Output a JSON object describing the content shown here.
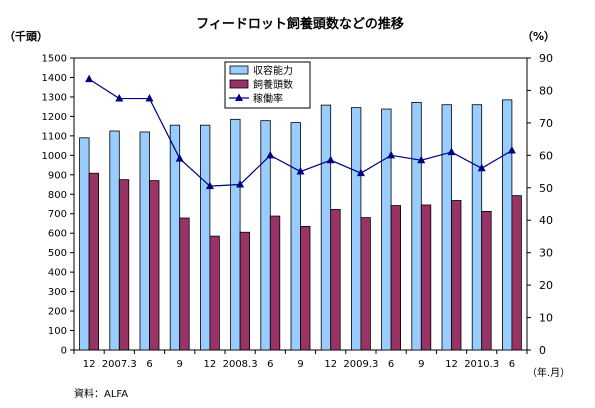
{
  "chart_data": {
    "type": "bar",
    "title": "フィードロット飼養頭数などの推移",
    "ylabel_left": "（千頭）",
    "ylabel_right": "（%）",
    "xlabel": "（年.月）",
    "source": "資料：ALFA",
    "categories": [
      "12",
      "2007.3",
      "6",
      "9",
      "12",
      "2008.3",
      "6",
      "9",
      "12",
      "2009.3",
      "6",
      "9",
      "12",
      "2010.3",
      "6"
    ],
    "ylim_left": [
      0,
      1500
    ],
    "yticks_left": [
      "0",
      "100",
      "200",
      "300",
      "400",
      "500",
      "600",
      "700",
      "800",
      "900",
      "1000",
      "1100",
      "1200",
      "1300",
      "1400",
      "1500"
    ],
    "ylim_right": [
      0,
      90
    ],
    "yticks_right": [
      "0",
      "10",
      "20",
      "30",
      "40",
      "50",
      "60",
      "70",
      "80",
      "90"
    ],
    "legend_position": "top-center",
    "series": [
      {
        "name": "収容能力",
        "kind": "bar",
        "axis": "left",
        "color": "#99ccff",
        "values": [
          1090,
          1125,
          1120,
          1155,
          1155,
          1185,
          1178,
          1168,
          1258,
          1245,
          1238,
          1272,
          1260,
          1260,
          1285
        ]
      },
      {
        "name": "飼養頭数",
        "kind": "bar",
        "axis": "left",
        "color": "#993366",
        "values": [
          908,
          875,
          870,
          678,
          585,
          605,
          688,
          635,
          722,
          680,
          742,
          745,
          768,
          712,
          793
        ]
      },
      {
        "name": "稼働率",
        "kind": "line",
        "axis": "right",
        "color": "#000080",
        "marker": "triangle",
        "values": [
          83.5,
          77.5,
          77.5,
          59,
          50.5,
          51,
          60,
          55,
          58.5,
          54.5,
          60,
          58.5,
          61,
          56,
          61.5
        ]
      }
    ]
  }
}
